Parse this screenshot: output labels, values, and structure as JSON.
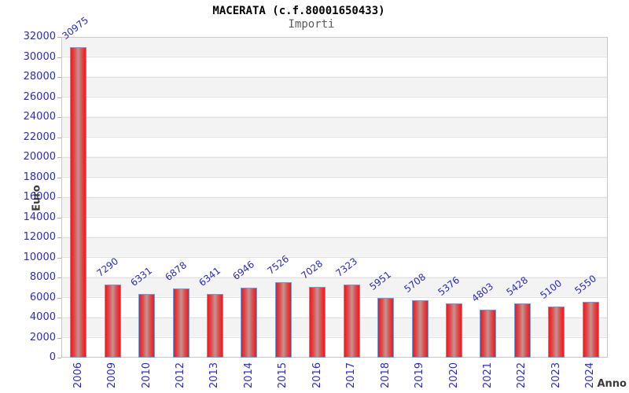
{
  "header": {
    "title": "MACERATA (c.f.80001650433)",
    "subtitle": "Importi"
  },
  "chart_data": {
    "type": "bar",
    "title": "MACERATA (c.f.80001650433)",
    "subtitle": "Importi",
    "xlabel": "Anno",
    "ylabel": "Euro",
    "categories": [
      "2006",
      "2009",
      "2010",
      "2012",
      "2013",
      "2014",
      "2015",
      "2016",
      "2017",
      "2018",
      "2019",
      "2020",
      "2021",
      "2022",
      "2023",
      "2024"
    ],
    "values": [
      30975,
      7290,
      6331,
      6878,
      6341,
      6946,
      7526,
      7028,
      7323,
      5951,
      5708,
      5376,
      4803,
      5428,
      5100,
      5550
    ],
    "ylim": [
      0,
      32000
    ],
    "ytick_step": 2000,
    "grid": true,
    "legend_position": "none",
    "colors": {
      "bar_fill_edge": "#ed1a21",
      "bar_fill_center": "#bf9694",
      "bar_border": "#64a2dd",
      "axis_text": "#2a2ac8",
      "value_label": "#2a2ac8",
      "band": "#f3f3f3",
      "gridline": "#e0e0e0",
      "plot_border": "#c8c8c8",
      "axis_title": "#3a3a3a",
      "title": "#000000",
      "subtitle": "#5a5a5a"
    }
  }
}
